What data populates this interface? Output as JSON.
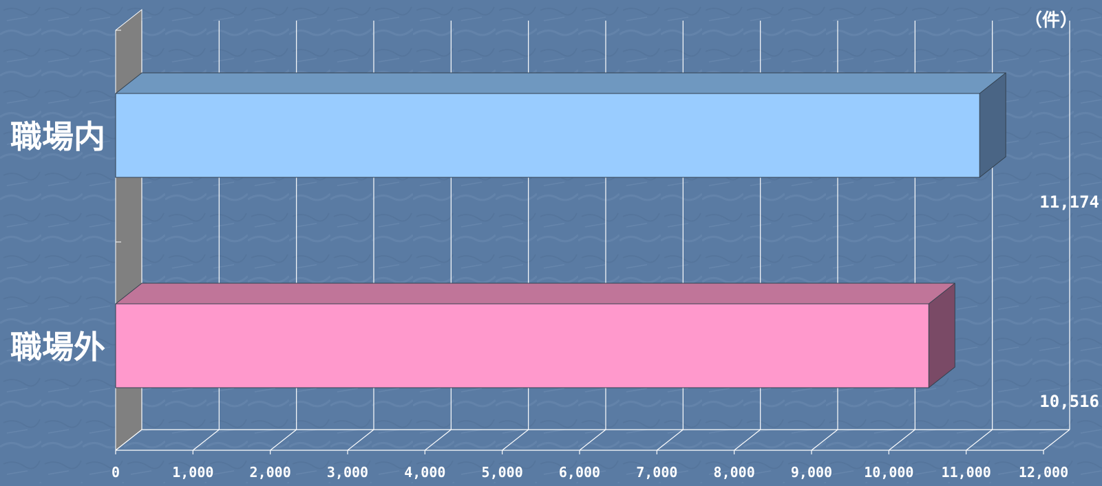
{
  "chart_data": {
    "type": "bar",
    "orientation": "horizontal",
    "three_d": true,
    "categories": [
      "職場内",
      "職場外"
    ],
    "values": [
      11174,
      10516
    ],
    "value_labels": [
      "11,174",
      "10,516"
    ],
    "unit_label": "（件）",
    "xlim": [
      0,
      12000
    ],
    "x_ticks": [
      0,
      1000,
      2000,
      3000,
      4000,
      5000,
      6000,
      7000,
      8000,
      9000,
      10000,
      11000,
      12000
    ],
    "x_tick_labels": [
      "0",
      "1,000",
      "2,000",
      "3,000",
      "4,000",
      "5,000",
      "6,000",
      "7,000",
      "8,000",
      "9,000",
      "10,000",
      "11,000",
      "12,000"
    ],
    "grid": true,
    "legend": "none",
    "colors": {
      "background": "#5a7ba3",
      "bar_1_front": "#99ccff",
      "bar_1_top": "#6f98c0",
      "bar_1_side": "#4a6585",
      "bar_2_front": "#ff99cc",
      "bar_2_top": "#c07599",
      "bar_2_side": "#7a4a66",
      "wall": "#808080",
      "gridline": "#ffffff",
      "text": "#ffffff"
    }
  }
}
